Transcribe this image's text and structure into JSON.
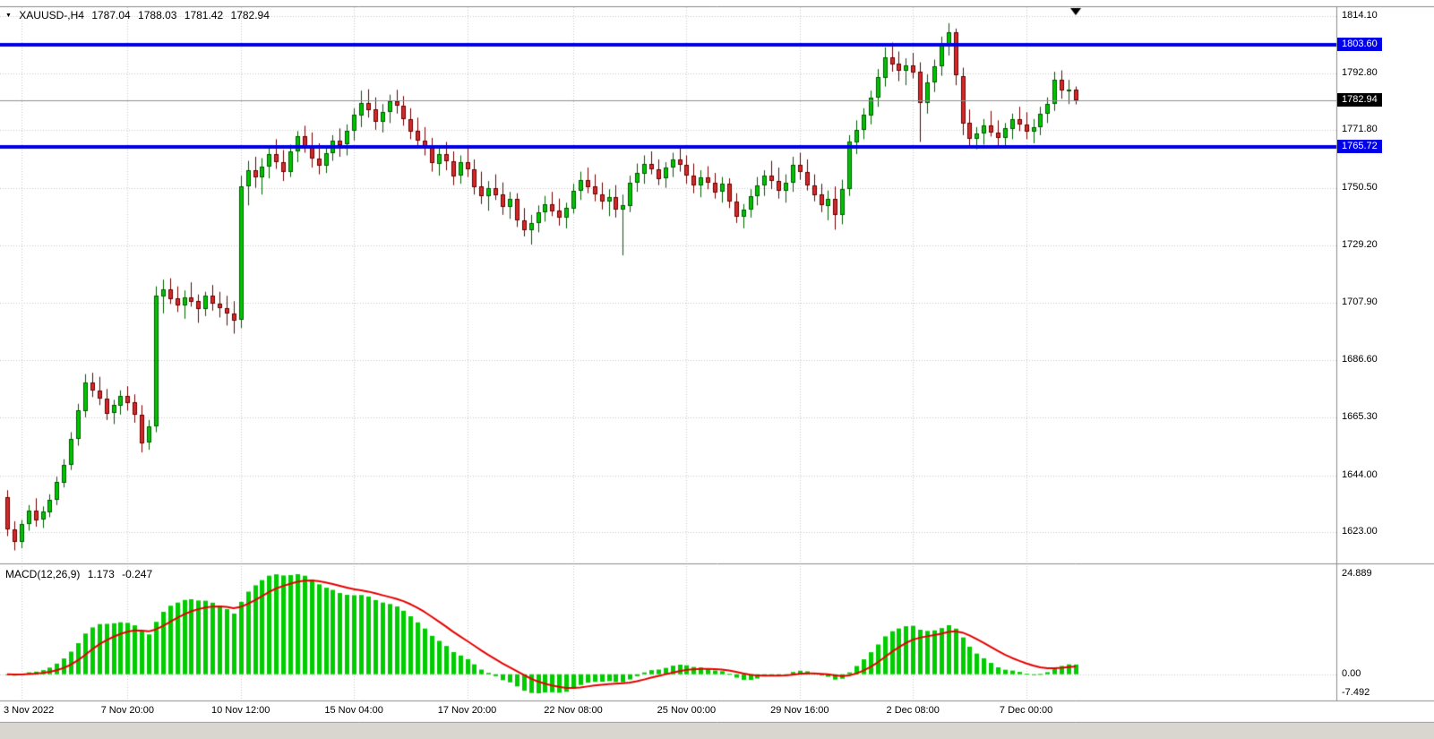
{
  "header": {
    "symbol": "XAUUSD-,H4",
    "open": "1787.04",
    "high": "1788.03",
    "low": "1781.42",
    "close": "1782.94"
  },
  "indicator_header": {
    "label": "MACD(12,26,9)",
    "macd_value": "1.173",
    "signal_value": "-0.247"
  },
  "colors": {
    "background": "#FFFFFF",
    "text": "#000000",
    "grid": "#C8C8C8",
    "bull": "#00C400",
    "bull_border": "#005A00",
    "bear": "#D42A2A",
    "bear_border": "#6B0000",
    "level_line": "#0000E6",
    "bid_line": "#909090",
    "bid_tag": "#000000",
    "histogram": "#00CC00",
    "signal_line": "#E60000",
    "separator": "#8C8C8C",
    "bottom_strip": "#D9D6D0"
  },
  "chart_data": {
    "type": "candlestick",
    "symbol": "XAUUSD-",
    "timeframe": "H4",
    "visible_price_range": [
      1612,
      1818
    ],
    "price_ticks": [
      "1814.10",
      "1792.80",
      "1771.80",
      "1750.50",
      "1729.20",
      "1707.90",
      "1686.60",
      "1665.30",
      "1644.00",
      "1623.00"
    ],
    "time_ticks": [
      {
        "label": "3 Nov 2022",
        "index": 2
      },
      {
        "label": "7 Nov 20:00",
        "index": 17
      },
      {
        "label": "10 Nov 12:00",
        "index": 33
      },
      {
        "label": "15 Nov 04:00",
        "index": 49
      },
      {
        "label": "17 Nov 20:00",
        "index": 65
      },
      {
        "label": "22 Nov 08:00",
        "index": 80
      },
      {
        "label": "25 Nov 00:00",
        "index": 96
      },
      {
        "label": "29 Nov 16:00",
        "index": 112
      },
      {
        "label": "2 Dec 08:00",
        "index": 128
      },
      {
        "label": "7 Dec 00:00",
        "index": 144
      }
    ],
    "hlines": [
      {
        "price": 1803.6,
        "label": "1803.60",
        "color": "#0000E6"
      },
      {
        "price": 1765.72,
        "label": "1765.72",
        "color": "#0000E6"
      }
    ],
    "bid": {
      "price": 1782.94,
      "label": "1782.94"
    },
    "macd": {
      "fast": 12,
      "slow": 26,
      "signal_period": 9,
      "axis_ticks": [
        "24.889",
        "0.00",
        "-7.492"
      ]
    },
    "ohlc": [
      [
        1636.0,
        1638.5,
        1621.5,
        1624.0
      ],
      [
        1624.0,
        1627.0,
        1616.2,
        1619.5
      ],
      [
        1619.5,
        1627.5,
        1617.0,
        1626.0
      ],
      [
        1626.0,
        1633.0,
        1623.5,
        1631.0
      ],
      [
        1631.0,
        1635.5,
        1625.0,
        1627.5
      ],
      [
        1627.5,
        1632.5,
        1624.5,
        1630.5
      ],
      [
        1630.5,
        1637.0,
        1628.5,
        1635.0
      ],
      [
        1635.0,
        1643.5,
        1633.0,
        1641.5
      ],
      [
        1641.5,
        1650.0,
        1639.5,
        1648.0
      ],
      [
        1648.0,
        1660.0,
        1646.0,
        1657.5
      ],
      [
        1657.5,
        1670.5,
        1655.0,
        1668.0
      ],
      [
        1668.0,
        1681.5,
        1665.5,
        1678.5
      ],
      [
        1678.5,
        1682.0,
        1673.0,
        1675.5
      ],
      [
        1675.5,
        1680.5,
        1670.0,
        1672.5
      ],
      [
        1672.5,
        1676.0,
        1664.5,
        1667.0
      ],
      [
        1667.0,
        1672.0,
        1663.0,
        1670.0
      ],
      [
        1670.0,
        1675.5,
        1666.5,
        1673.5
      ],
      [
        1673.5,
        1677.0,
        1668.0,
        1671.0
      ],
      [
        1671.0,
        1674.0,
        1663.5,
        1666.5
      ],
      [
        1666.5,
        1670.0,
        1652.5,
        1656.0
      ],
      [
        1656.0,
        1664.5,
        1653.5,
        1662.0
      ],
      [
        1662.0,
        1714.0,
        1660.0,
        1710.5
      ],
      [
        1710.5,
        1716.5,
        1704.0,
        1713.0
      ],
      [
        1713.0,
        1717.0,
        1707.5,
        1709.5
      ],
      [
        1709.5,
        1714.0,
        1704.5,
        1707.0
      ],
      [
        1707.0,
        1712.5,
        1702.0,
        1710.0
      ],
      [
        1710.0,
        1715.5,
        1706.5,
        1708.5
      ],
      [
        1708.5,
        1711.0,
        1700.5,
        1705.5
      ],
      [
        1705.5,
        1712.0,
        1703.0,
        1710.5
      ],
      [
        1710.5,
        1714.5,
        1705.0,
        1707.5
      ],
      [
        1707.5,
        1712.0,
        1702.5,
        1706.0
      ],
      [
        1706.0,
        1710.5,
        1699.5,
        1704.0
      ],
      [
        1704.0,
        1708.5,
        1696.5,
        1701.5
      ],
      [
        1701.5,
        1755.0,
        1698.5,
        1751.0
      ],
      [
        1751.0,
        1760.5,
        1744.0,
        1757.0
      ],
      [
        1757.0,
        1762.0,
        1750.5,
        1754.5
      ],
      [
        1754.5,
        1761.5,
        1748.0,
        1758.5
      ],
      [
        1758.5,
        1766.0,
        1754.0,
        1763.0
      ],
      [
        1763.0,
        1768.5,
        1757.5,
        1760.0
      ],
      [
        1760.0,
        1764.5,
        1753.0,
        1756.5
      ],
      [
        1756.5,
        1766.5,
        1754.5,
        1764.0
      ],
      [
        1764.0,
        1771.5,
        1760.0,
        1769.5
      ],
      [
        1769.5,
        1773.5,
        1763.5,
        1766.0
      ],
      [
        1766.0,
        1771.0,
        1758.0,
        1761.5
      ],
      [
        1761.5,
        1767.0,
        1755.5,
        1759.0
      ],
      [
        1759.0,
        1765.5,
        1756.0,
        1763.5
      ],
      [
        1763.5,
        1770.0,
        1760.5,
        1768.0
      ],
      [
        1768.0,
        1772.5,
        1762.0,
        1766.5
      ],
      [
        1766.5,
        1774.0,
        1762.5,
        1771.5
      ],
      [
        1771.5,
        1780.0,
        1768.0,
        1777.5
      ],
      [
        1777.5,
        1786.5,
        1773.0,
        1782.0
      ],
      [
        1782.0,
        1787.0,
        1776.5,
        1779.5
      ],
      [
        1779.5,
        1784.0,
        1772.0,
        1775.0
      ],
      [
        1775.0,
        1781.5,
        1771.0,
        1778.5
      ],
      [
        1778.5,
        1785.0,
        1774.5,
        1782.5
      ],
      [
        1782.5,
        1786.8,
        1778.0,
        1781.0
      ],
      [
        1781.0,
        1784.5,
        1773.5,
        1776.0
      ],
      [
        1776.0,
        1780.0,
        1768.5,
        1771.5
      ],
      [
        1771.5,
        1776.5,
        1765.0,
        1768.0
      ],
      [
        1768.0,
        1773.0,
        1762.5,
        1765.5
      ],
      [
        1765.5,
        1769.0,
        1756.5,
        1759.5
      ],
      [
        1759.5,
        1766.0,
        1755.0,
        1763.0
      ],
      [
        1763.0,
        1767.5,
        1757.0,
        1760.5
      ],
      [
        1760.5,
        1764.0,
        1751.5,
        1755.0
      ],
      [
        1755.0,
        1762.5,
        1752.0,
        1760.0
      ],
      [
        1760.0,
        1765.0,
        1754.5,
        1757.5
      ],
      [
        1757.5,
        1761.0,
        1748.0,
        1751.0
      ],
      [
        1751.0,
        1756.5,
        1744.5,
        1747.5
      ],
      [
        1747.5,
        1753.0,
        1742.0,
        1750.5
      ],
      [
        1750.5,
        1755.5,
        1746.0,
        1748.0
      ],
      [
        1748.0,
        1752.5,
        1740.5,
        1743.5
      ],
      [
        1743.5,
        1749.0,
        1739.0,
        1746.5
      ],
      [
        1746.5,
        1748.5,
        1736.0,
        1738.5
      ],
      [
        1738.5,
        1743.0,
        1732.5,
        1735.0
      ],
      [
        1735.0,
        1740.5,
        1729.5,
        1737.5
      ],
      [
        1737.5,
        1744.0,
        1734.0,
        1741.5
      ],
      [
        1741.5,
        1747.5,
        1738.0,
        1744.5
      ],
      [
        1744.5,
        1749.0,
        1740.0,
        1742.0
      ],
      [
        1742.0,
        1746.5,
        1736.5,
        1739.5
      ],
      [
        1739.5,
        1745.0,
        1735.5,
        1743.0
      ],
      [
        1743.0,
        1752.0,
        1741.0,
        1749.5
      ],
      [
        1749.5,
        1756.5,
        1746.0,
        1753.5
      ],
      [
        1753.5,
        1758.0,
        1748.5,
        1751.0
      ],
      [
        1751.0,
        1755.5,
        1745.5,
        1748.0
      ],
      [
        1748.0,
        1752.5,
        1742.5,
        1745.5
      ],
      [
        1745.5,
        1750.0,
        1740.0,
        1747.0
      ],
      [
        1747.0,
        1751.5,
        1739.5,
        1742.5
      ],
      [
        1742.5,
        1748.0,
        1725.5,
        1744.0
      ],
      [
        1744.0,
        1755.0,
        1741.5,
        1752.5
      ],
      [
        1752.5,
        1759.5,
        1749.0,
        1756.0
      ],
      [
        1756.0,
        1762.5,
        1752.0,
        1759.5
      ],
      [
        1759.5,
        1764.0,
        1755.5,
        1757.5
      ],
      [
        1757.5,
        1761.0,
        1751.5,
        1754.0
      ],
      [
        1754.0,
        1760.0,
        1750.5,
        1758.0
      ],
      [
        1758.0,
        1763.5,
        1754.5,
        1761.0
      ],
      [
        1761.0,
        1765.0,
        1756.5,
        1759.0
      ],
      [
        1759.0,
        1762.5,
        1752.0,
        1755.0
      ],
      [
        1755.0,
        1759.5,
        1748.5,
        1751.5
      ],
      [
        1751.5,
        1757.0,
        1747.0,
        1754.5
      ],
      [
        1754.5,
        1758.5,
        1750.0,
        1752.5
      ],
      [
        1752.5,
        1756.0,
        1746.5,
        1749.0
      ],
      [
        1749.0,
        1754.5,
        1745.0,
        1752.0
      ],
      [
        1752.0,
        1754.0,
        1743.0,
        1745.5
      ],
      [
        1745.5,
        1748.5,
        1737.5,
        1740.0
      ],
      [
        1740.0,
        1744.5,
        1735.5,
        1742.5
      ],
      [
        1742.5,
        1750.0,
        1739.5,
        1747.5
      ],
      [
        1747.5,
        1754.5,
        1744.0,
        1751.5
      ],
      [
        1751.5,
        1757.0,
        1747.5,
        1755.0
      ],
      [
        1755.0,
        1760.5,
        1750.0,
        1753.0
      ],
      [
        1753.0,
        1758.0,
        1746.5,
        1749.5
      ],
      [
        1749.5,
        1755.5,
        1745.0,
        1752.5
      ],
      [
        1752.5,
        1762.0,
        1749.0,
        1759.0
      ],
      [
        1759.0,
        1763.5,
        1753.5,
        1756.5
      ],
      [
        1756.5,
        1761.0,
        1749.5,
        1751.5
      ],
      [
        1751.5,
        1755.5,
        1745.5,
        1748.0
      ],
      [
        1748.0,
        1752.0,
        1741.5,
        1744.0
      ],
      [
        1744.0,
        1749.5,
        1738.5,
        1746.5
      ],
      [
        1746.5,
        1751.0,
        1735.0,
        1740.5
      ],
      [
        1740.5,
        1753.5,
        1737.0,
        1750.0
      ],
      [
        1750.0,
        1770.0,
        1747.5,
        1767.5
      ],
      [
        1767.5,
        1775.5,
        1763.0,
        1772.0
      ],
      [
        1772.0,
        1780.0,
        1768.5,
        1777.5
      ],
      [
        1777.5,
        1786.5,
        1774.0,
        1784.0
      ],
      [
        1784.0,
        1794.5,
        1780.5,
        1791.5
      ],
      [
        1791.5,
        1802.5,
        1788.0,
        1799.0
      ],
      [
        1799.0,
        1804.3,
        1793.5,
        1796.5
      ],
      [
        1796.5,
        1801.0,
        1790.0,
        1794.0
      ],
      [
        1794.0,
        1798.5,
        1788.5,
        1796.0
      ],
      [
        1796.0,
        1800.5,
        1791.0,
        1793.5
      ],
      [
        1793.5,
        1797.0,
        1767.5,
        1782.0
      ],
      [
        1782.0,
        1792.5,
        1778.0,
        1789.5
      ],
      [
        1789.5,
        1798.0,
        1786.0,
        1795.5
      ],
      [
        1795.5,
        1806.5,
        1792.0,
        1803.0
      ],
      [
        1803.0,
        1811.5,
        1799.5,
        1808.0
      ],
      [
        1808.0,
        1809.5,
        1788.5,
        1792.0
      ],
      [
        1792.0,
        1795.0,
        1770.0,
        1774.5
      ],
      [
        1774.5,
        1779.5,
        1765.5,
        1768.5
      ],
      [
        1768.5,
        1773.0,
        1764.8,
        1770.5
      ],
      [
        1770.5,
        1776.0,
        1766.5,
        1773.5
      ],
      [
        1773.5,
        1779.0,
        1769.5,
        1771.0
      ],
      [
        1771.0,
        1775.5,
        1765.8,
        1769.0
      ],
      [
        1769.0,
        1774.5,
        1766.0,
        1772.5
      ],
      [
        1772.5,
        1778.0,
        1768.5,
        1776.0
      ],
      [
        1776.0,
        1780.5,
        1771.5,
        1774.0
      ],
      [
        1774.0,
        1778.5,
        1768.5,
        1771.5
      ],
      [
        1771.5,
        1776.0,
        1767.0,
        1773.0
      ],
      [
        1773.0,
        1780.5,
        1770.0,
        1778.0
      ],
      [
        1778.0,
        1784.0,
        1774.5,
        1781.5
      ],
      [
        1781.5,
        1793.5,
        1779.0,
        1790.5
      ],
      [
        1790.5,
        1794.0,
        1783.5,
        1786.5
      ],
      [
        1786.5,
        1790.5,
        1781.5,
        1787.0
      ],
      [
        1787.04,
        1788.03,
        1781.42,
        1782.94
      ]
    ]
  }
}
